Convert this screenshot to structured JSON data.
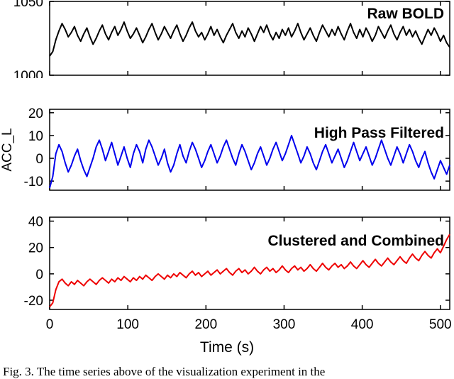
{
  "figure": {
    "xlabel": "Time (s)",
    "caption": "Fig. 3. The time series above of the visualization experiment in the"
  },
  "chart_data": [
    {
      "type": "line",
      "title": "Raw BOLD",
      "color": "#000000",
      "xlim": [
        0,
        512
      ],
      "xticks": [
        0,
        100,
        200,
        300,
        400,
        500
      ],
      "ylim": [
        1000,
        1050
      ],
      "yticks": [
        1000,
        1050
      ],
      "values": [
        1013,
        1016,
        1024,
        1030,
        1035,
        1031,
        1026,
        1029,
        1033,
        1027,
        1023,
        1028,
        1032,
        1026,
        1021,
        1025,
        1030,
        1034,
        1028,
        1024,
        1029,
        1033,
        1027,
        1031,
        1036,
        1030,
        1025,
        1028,
        1032,
        1027,
        1022,
        1026,
        1031,
        1035,
        1029,
        1024,
        1028,
        1033,
        1029,
        1025,
        1030,
        1034,
        1028,
        1023,
        1027,
        1032,
        1036,
        1030,
        1026,
        1029,
        1024,
        1028,
        1033,
        1027,
        1031,
        1026,
        1022,
        1027,
        1031,
        1035,
        1029,
        1025,
        1030,
        1026,
        1032,
        1028,
        1023,
        1028,
        1033,
        1029,
        1034,
        1028,
        1024,
        1029,
        1025,
        1031,
        1027,
        1032,
        1026,
        1030,
        1035,
        1029,
        1024,
        1028,
        1032,
        1027,
        1023,
        1029,
        1034,
        1030,
        1026,
        1031,
        1027,
        1033,
        1028,
        1024,
        1030,
        1035,
        1029,
        1025,
        1031,
        1026,
        1032,
        1028,
        1023,
        1027,
        1033,
        1029,
        1025,
        1030,
        1034,
        1028,
        1024,
        1029,
        1033,
        1027,
        1031,
        1026,
        1030,
        1025,
        1021,
        1026,
        1031,
        1027,
        1032,
        1028,
        1023,
        1027,
        1022,
        1019
      ]
    },
    {
      "type": "line",
      "title": "High Pass Filtered",
      "color": "#0000ee",
      "ylabel": "ACC_L",
      "xlim": [
        0,
        512
      ],
      "xticks": [
        0,
        100,
        200,
        300,
        400,
        500
      ],
      "ylim": [
        -14,
        21.5
      ],
      "yticks": [
        -10,
        0,
        10,
        20
      ],
      "values": [
        -13,
        -8,
        2,
        6,
        3,
        -2,
        -6,
        -3,
        1,
        4,
        -1,
        -5,
        -8,
        -4,
        0,
        5,
        8,
        4,
        -1,
        3,
        7,
        2,
        -3,
        1,
        5,
        0,
        -4,
        2,
        6,
        3,
        -2,
        4,
        8,
        5,
        1,
        -3,
        0,
        4,
        -2,
        -6,
        -3,
        2,
        6,
        1,
        -2,
        3,
        7,
        4,
        0,
        -4,
        -1,
        3,
        6,
        2,
        -2,
        1,
        5,
        8,
        4,
        0,
        -3,
        2,
        6,
        3,
        -1,
        -5,
        -2,
        2,
        5,
        1,
        -3,
        0,
        4,
        7,
        3,
        -1,
        2,
        6,
        10,
        6,
        2,
        -2,
        1,
        5,
        2,
        -2,
        -5,
        -1,
        3,
        6,
        2,
        -2,
        1,
        4,
        0,
        -4,
        -1,
        3,
        7,
        3,
        -1,
        2,
        5,
        1,
        -3,
        0,
        4,
        8,
        4,
        0,
        -3,
        1,
        5,
        2,
        -2,
        2,
        6,
        3,
        -1,
        -4,
        0,
        3,
        -2,
        -6,
        -9,
        -5,
        -1,
        -4,
        -7,
        -3
      ]
    },
    {
      "type": "line",
      "title": "Clustered and Combined",
      "color": "#ee0000",
      "xlim": [
        0,
        512
      ],
      "xticks": [
        0,
        100,
        200,
        300,
        400,
        500
      ],
      "ylim": [
        -27,
        43
      ],
      "yticks": [
        -20,
        0,
        20,
        40
      ],
      "values": [
        -25,
        -22,
        -12,
        -6,
        -4,
        -7,
        -9,
        -6,
        -8,
        -5,
        -7,
        -9,
        -6,
        -4,
        -6,
        -8,
        -5,
        -3,
        -5,
        -7,
        -4,
        -6,
        -3,
        -5,
        -2,
        -4,
        -6,
        -3,
        -5,
        -2,
        -4,
        -1,
        -3,
        -5,
        -2,
        0,
        -2,
        -4,
        -1,
        -3,
        0,
        -2,
        1,
        -1,
        -3,
        0,
        2,
        -1,
        1,
        -2,
        0,
        2,
        -1,
        1,
        3,
        0,
        2,
        4,
        1,
        -1,
        2,
        4,
        1,
        3,
        0,
        2,
        5,
        2,
        0,
        3,
        5,
        2,
        4,
        1,
        3,
        6,
        3,
        1,
        4,
        6,
        3,
        5,
        2,
        4,
        7,
        4,
        2,
        5,
        8,
        5,
        3,
        6,
        8,
        5,
        7,
        4,
        6,
        9,
        6,
        4,
        7,
        10,
        7,
        5,
        8,
        11,
        8,
        6,
        9,
        12,
        9,
        7,
        10,
        13,
        10,
        8,
        12,
        15,
        12,
        10,
        14,
        17,
        14,
        12,
        16,
        19,
        16,
        21,
        26,
        30
      ]
    }
  ]
}
